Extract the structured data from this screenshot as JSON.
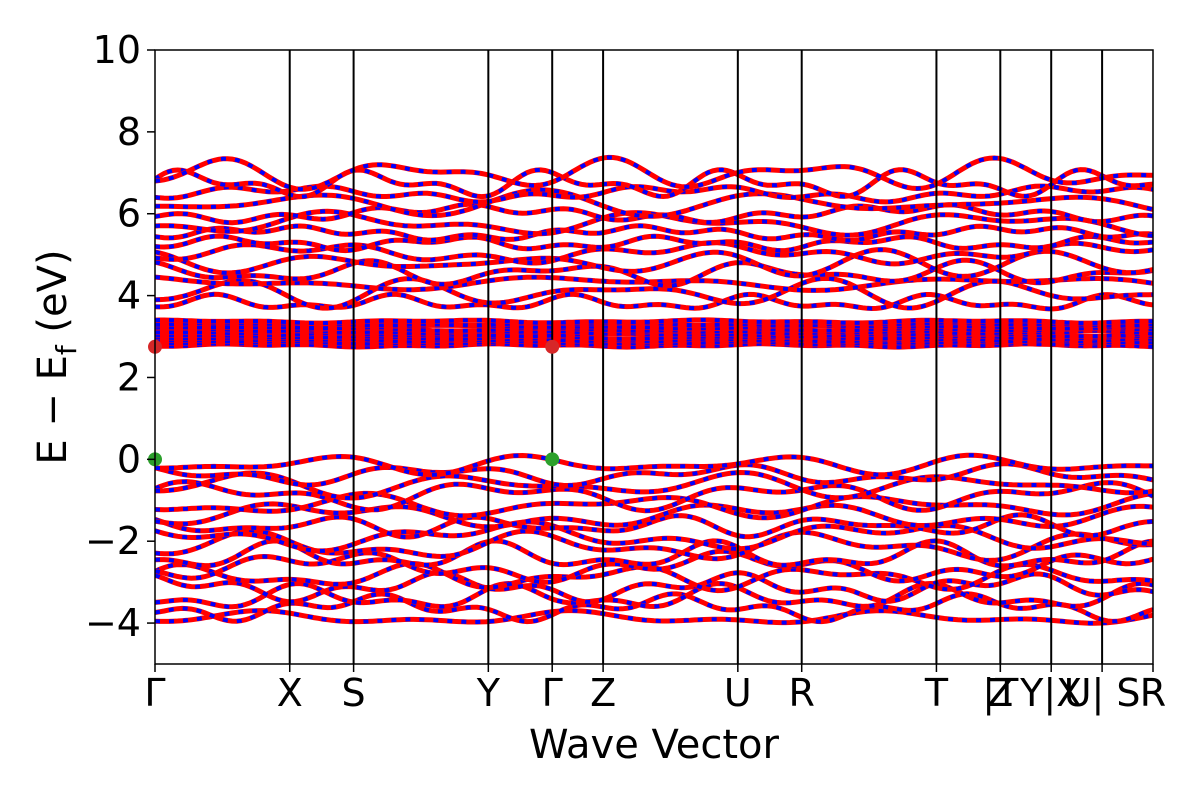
{
  "chart_data": {
    "type": "line",
    "title": "",
    "xlabel": "Wave Vector",
    "ylabel_main": "E − E",
    "ylabel_sub": "f",
    "ylabel_unit": " (eV)",
    "ylim": [
      -5,
      10
    ],
    "yticks": [
      -4,
      -2,
      0,
      2,
      4,
      6,
      8,
      10
    ],
    "ytick_labels": [
      "−4",
      "−2",
      "0",
      "2",
      "4",
      "6",
      "8",
      "10"
    ],
    "xlim": [
      0,
      1
    ],
    "kpoints": [
      {
        "label": "Γ",
        "x": 0.0
      },
      {
        "label": "X",
        "x": 0.135
      },
      {
        "label": "S",
        "x": 0.199
      },
      {
        "label": "Y",
        "x": 0.334
      },
      {
        "label": "Γ",
        "x": 0.398
      },
      {
        "label": "Z",
        "x": 0.449
      },
      {
        "label": "U",
        "x": 0.584
      },
      {
        "label": "R",
        "x": 0.648
      },
      {
        "label": "T",
        "x": 0.783
      },
      {
        "label": "Z",
        "x": 0.847
      },
      {
        "label": "|T",
        "x": 0.847
      },
      {
        "label": "Y|X",
        "x": 0.898
      },
      {
        "label": "U| S",
        "x": 0.949
      },
      {
        "label": "R",
        "x": 1.0
      }
    ],
    "vlines": [
      0.135,
      0.199,
      0.334,
      0.398,
      0.449,
      0.584,
      0.648,
      0.783,
      0.847,
      0.898,
      0.949
    ],
    "series": [
      {
        "color_spin_up": "#ff0000",
        "color_spin_down": "#0000ff"
      }
    ],
    "band_groups": {
      "valence": {
        "min": -4.0,
        "max": 0.0,
        "count": 16
      },
      "flat": {
        "min": 2.75,
        "max": 3.4,
        "count": 10
      },
      "conduction": {
        "min": 3.7,
        "max": 7.1,
        "count": 14
      }
    },
    "markers": [
      {
        "type": "cbm",
        "x": 0.0,
        "y": 2.75,
        "color": "#d62728"
      },
      {
        "type": "cbm",
        "x": 0.398,
        "y": 2.75,
        "color": "#d62728"
      },
      {
        "type": "vbm",
        "x": 0.0,
        "y": 0.0,
        "color": "#2ca02c"
      },
      {
        "type": "vbm",
        "x": 0.398,
        "y": 0.0,
        "color": "#2ca02c"
      }
    ]
  }
}
